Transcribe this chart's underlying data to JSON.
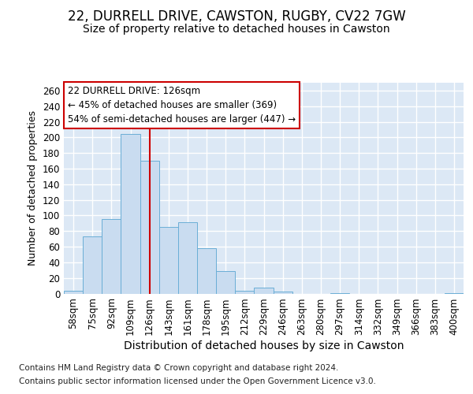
{
  "title1": "22, DURRELL DRIVE, CAWSTON, RUGBY, CV22 7GW",
  "title2": "Size of property relative to detached houses in Cawston",
  "xlabel": "Distribution of detached houses by size in Cawston",
  "ylabel": "Number of detached properties",
  "footer1": "Contains HM Land Registry data © Crown copyright and database right 2024.",
  "footer2": "Contains public sector information licensed under the Open Government Licence v3.0.",
  "categories": [
    "58sqm",
    "75sqm",
    "92sqm",
    "109sqm",
    "126sqm",
    "143sqm",
    "161sqm",
    "178sqm",
    "195sqm",
    "212sqm",
    "229sqm",
    "246sqm",
    "263sqm",
    "280sqm",
    "297sqm",
    "314sqm",
    "332sqm",
    "349sqm",
    "366sqm",
    "383sqm",
    "400sqm"
  ],
  "values": [
    4,
    73,
    95,
    204,
    170,
    85,
    91,
    58,
    29,
    4,
    8,
    3,
    0,
    0,
    1,
    0,
    0,
    0,
    0,
    0,
    1
  ],
  "bar_color": "#c9dcf0",
  "bar_edge_color": "#6aaed6",
  "highlight_index": 4,
  "red_line_color": "#cc0000",
  "annotation_line1": "22 DURRELL DRIVE: 126sqm",
  "annotation_line2": "← 45% of detached houses are smaller (369)",
  "annotation_line3": "54% of semi-detached houses are larger (447) →",
  "annotation_box_color": "#ffffff",
  "annotation_box_edge": "#cc0000",
  "ylim": [
    0,
    270
  ],
  "yticks": [
    0,
    20,
    40,
    60,
    80,
    100,
    120,
    140,
    160,
    180,
    200,
    220,
    240,
    260
  ],
  "bg_color": "#dce8f5",
  "grid_color": "#ffffff",
  "fig_bg": "#ffffff",
  "title1_fontsize": 12,
  "title2_fontsize": 10,
  "xlabel_fontsize": 10,
  "ylabel_fontsize": 9,
  "tick_fontsize": 8.5,
  "footer_fontsize": 7.5
}
